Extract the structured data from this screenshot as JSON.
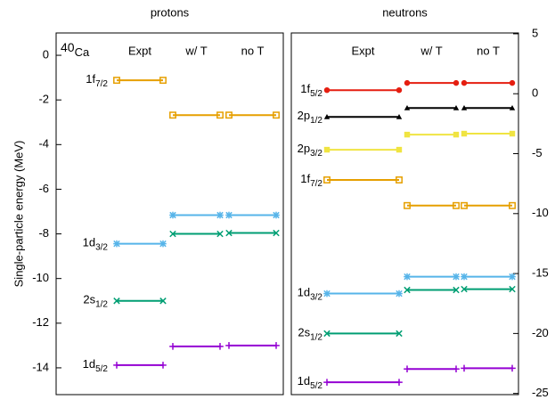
{
  "chart_data": [
    {
      "type": "level",
      "title": "protons",
      "annotation_sup": "40",
      "annotation": "Ca",
      "y_label": "Single-particle energy (MeV)",
      "y_axis_side": "left",
      "categories": [
        "Expt",
        "w/ T",
        "no T"
      ],
      "ylim": [
        -15.2,
        1
      ],
      "yticks": [
        0,
        -2,
        -4,
        -6,
        -8,
        -10,
        -12,
        -14
      ],
      "series": [
        {
          "name": "1f",
          "subscript": "7/2",
          "color": "#e69f00",
          "marker": "open-square",
          "values": [
            -1.12,
            -2.68,
            -2.68
          ]
        },
        {
          "name": "1d",
          "subscript": "3/2",
          "color": "#56b4e9",
          "marker": "asterisk",
          "values": [
            -8.44,
            -7.16,
            -7.16
          ]
        },
        {
          "name": "2s",
          "subscript": "1/2",
          "color": "#009e73",
          "marker": "cross",
          "values": [
            -11.0,
            -8.0,
            -7.96
          ]
        },
        {
          "name": "1d",
          "subscript": "5/2",
          "color": "#9400d3",
          "marker": "plus",
          "values": [
            -13.88,
            -13.04,
            -13.0
          ]
        }
      ]
    },
    {
      "type": "level",
      "title": "neutrons",
      "y_axis_side": "right",
      "categories": [
        "Expt",
        "w/ T",
        "no T"
      ],
      "ylim": [
        -25.1,
        5.07
      ],
      "yticks": [
        5,
        0,
        -5,
        -10,
        -15,
        -20,
        -25
      ],
      "series": [
        {
          "name": "1f",
          "subscript": "5/2",
          "color": "#e51e10",
          "marker": "circle",
          "values": [
            0.3,
            0.9,
            0.9
          ]
        },
        {
          "name": "2p",
          "subscript": "1/2",
          "color": "#000000",
          "marker": "triangle",
          "values": [
            -1.93,
            -1.19,
            -1.19
          ]
        },
        {
          "name": "2p",
          "subscript": "3/2",
          "color": "#f0e442",
          "marker": "filled-square",
          "values": [
            -4.67,
            -3.41,
            -3.33
          ]
        },
        {
          "name": "1f",
          "subscript": "7/2",
          "color": "#e69f00",
          "marker": "open-square",
          "values": [
            -7.19,
            -9.33,
            -9.33
          ]
        },
        {
          "name": "1d",
          "subscript": "3/2",
          "color": "#56b4e9",
          "marker": "asterisk",
          "values": [
            -16.67,
            -15.26,
            -15.26
          ]
        },
        {
          "name": "2s",
          "subscript": "1/2",
          "color": "#009e73",
          "marker": "cross",
          "values": [
            -20.0,
            -16.37,
            -16.3
          ]
        },
        {
          "name": "1d",
          "subscript": "5/2",
          "color": "#9400d3",
          "marker": "plus",
          "values": [
            -24.07,
            -22.96,
            -22.9
          ]
        }
      ]
    }
  ]
}
